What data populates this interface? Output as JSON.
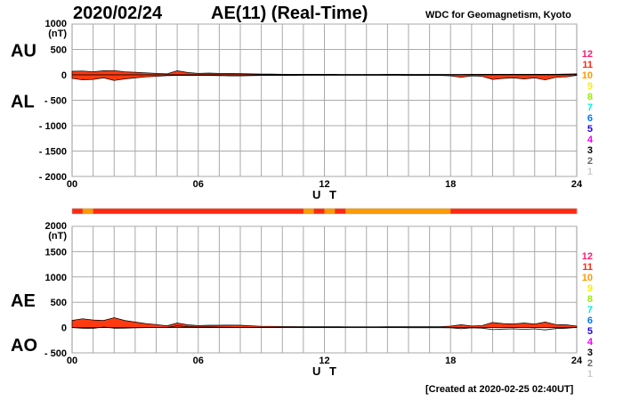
{
  "header": {
    "date": "2020/02/24",
    "title": "AE(11) (Real-Time)",
    "org": "WDC for Geomagnetism, Kyoto"
  },
  "footer": {
    "created": "[Created at 2020-02-25 02:40UT]"
  },
  "legend": {
    "labels": [
      "12",
      "11",
      "10",
      "9",
      "8",
      "7",
      "6",
      "5",
      "4",
      "3",
      "2",
      "1"
    ],
    "colors": [
      "#ff1a6e",
      "#ff2a10",
      "#ff9a00",
      "#ffee00",
      "#99ee00",
      "#00eedd",
      "#0077ff",
      "#2200ee",
      "#ee00ee",
      "#000000",
      "#666666",
      "#cccccc"
    ]
  },
  "chart_data": [
    {
      "type": "area",
      "title": "AU / AL",
      "labels": {
        "upper": "AU",
        "lower": "AL"
      },
      "unit": "(nT)",
      "xlabel": "U T",
      "ylim": [
        -2000,
        1000
      ],
      "yticks": [
        "1000",
        "500",
        "0",
        "- 500",
        "- 1000",
        "- 1500",
        "- 2000"
      ],
      "ytick_values": [
        1000,
        500,
        0,
        -500,
        -1000,
        -1500,
        -2000
      ],
      "xlim": [
        0,
        24
      ],
      "xticks": [
        "00",
        "06",
        "12",
        "18",
        "24"
      ],
      "xtick_values": [
        0,
        6,
        12,
        18,
        24
      ],
      "grid": true
    },
    {
      "type": "area",
      "title": "AE / AO",
      "labels": {
        "upper": "AE",
        "lower": "AO"
      },
      "unit": "(nT)",
      "xlabel": "U T",
      "ylim": [
        -500,
        2000
      ],
      "yticks": [
        "2000",
        "1500",
        "1000",
        "500",
        "0",
        "- 500"
      ],
      "ytick_values": [
        2000,
        1500,
        1000,
        500,
        0,
        -500
      ],
      "xlim": [
        0,
        24
      ],
      "xticks": [
        "00",
        "06",
        "12",
        "18",
        "24"
      ],
      "xtick_values": [
        0,
        6,
        12,
        18,
        24
      ],
      "grid": true
    }
  ],
  "series": {
    "hours_step": 0.5,
    "AU": [
      70,
      75,
      60,
      80,
      85,
      60,
      50,
      40,
      30,
      20,
      80,
      45,
      30,
      35,
      30,
      30,
      25,
      20,
      15,
      15,
      10,
      10,
      10,
      10,
      10,
      10,
      8,
      8,
      8,
      8,
      10,
      10,
      8,
      8,
      8,
      8,
      8,
      8,
      10,
      10,
      10,
      10,
      12,
      10,
      10,
      10,
      10,
      15,
      20
    ],
    "AL": [
      -70,
      -100,
      -90,
      -60,
      -110,
      -80,
      -60,
      -40,
      -30,
      -15,
      -10,
      -10,
      -10,
      -10,
      -15,
      -20,
      -20,
      -15,
      -10,
      -10,
      -10,
      -10,
      -8,
      -8,
      -8,
      -8,
      -8,
      -8,
      -8,
      -8,
      -8,
      -8,
      -10,
      -10,
      -10,
      -10,
      -20,
      -50,
      -20,
      -30,
      -90,
      -70,
      -60,
      -80,
      -60,
      -100,
      -50,
      -40,
      -10
    ],
    "stations": [
      11,
      10,
      11,
      11,
      11,
      11,
      11,
      11,
      11,
      11,
      11,
      11,
      11,
      11,
      11,
      11,
      11,
      11,
      11,
      11,
      11,
      11,
      10,
      11,
      10,
      11,
      10,
      10,
      10,
      10,
      10,
      10,
      10,
      10,
      10,
      10,
      11,
      11,
      11,
      11,
      11,
      11,
      11,
      11,
      11,
      11,
      11,
      11
    ]
  }
}
